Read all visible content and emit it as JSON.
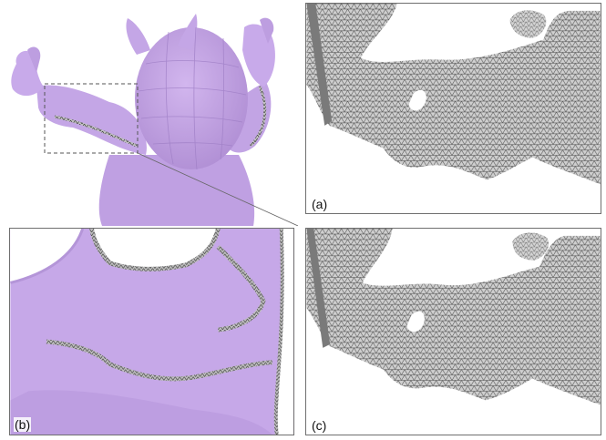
{
  "figure": {
    "labels": {
      "a": "(a)",
      "b": "(b)",
      "c": "(c)"
    },
    "colors": {
      "model_fill": "#c8a8e8",
      "model_shade": "#b08fd4",
      "mesh_fill": "#c9c9c9",
      "mesh_line": "#4a4a4a",
      "frame": "#6f6f6f"
    }
  }
}
